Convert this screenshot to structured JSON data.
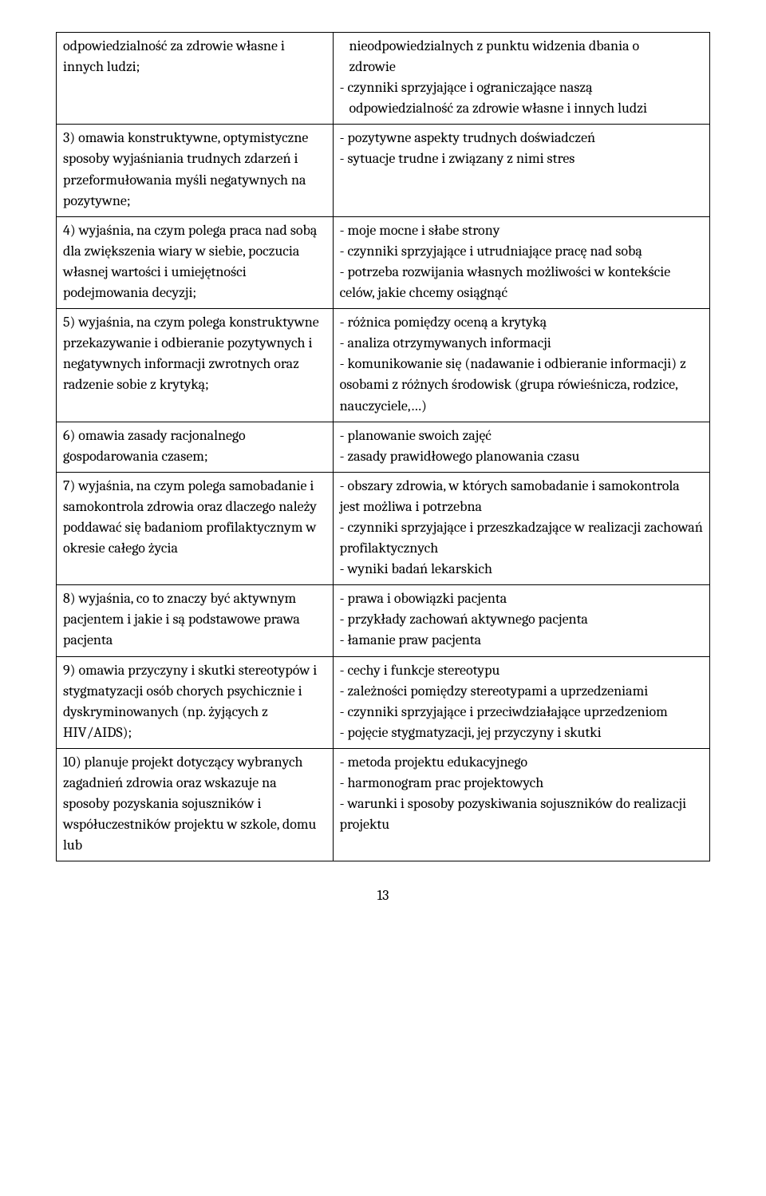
{
  "rows": [
    {
      "left": "odpowiedzialność za zdrowie własne i innych ludzi;",
      "right_first": "   nieodpowiedzialnych z punktu widzenia dbania o",
      "right_indent": "   zdrowie",
      "right_rest": "- czynniki sprzyjające i ograniczające naszą<br>&nbsp;&nbsp;&nbsp;odpowiedzialność za zdrowie własne i innych ludzi"
    },
    {
      "left": "3) omawia konstruktywne, optymistyczne sposoby wyjaśniania trudnych zdarzeń i przeformułowania myśli negatywnych na pozytywne;",
      "right": "- pozytywne aspekty trudnych doświadczeń<br>- sytuacje trudne  i związany z nimi stres"
    },
    {
      "left": "4) wyjaśnia, na czym polega praca nad sobą dla zwiększenia wiary w siebie, poczucia własnej wartości i umiejętności podejmowania decyzji;",
      "right": "- moje mocne i słabe strony<br>- czynniki sprzyjające i utrudniające pracę nad sobą<br>- potrzeba rozwijania własnych możliwości w kontekście celów, jakie chcemy osiągnąć"
    },
    {
      "left": "5) wyjaśnia, na czym polega konstruktywne przekazywanie i odbieranie pozytywnych i negatywnych informacji zwrotnych oraz radzenie sobie z krytyką;",
      "right": "- różnica pomiędzy oceną a krytyką<br>- analiza otrzymywanych informacji<br>- komunikowanie się (nadawanie i odbieranie informacji) z osobami z różnych środowisk (grupa rówieśnicza, rodzice, nauczyciele,…)"
    },
    {
      "left": "6) omawia zasady racjonalnego gospodarowania czasem;",
      "right": "- planowanie swoich zajęć<br>- zasady prawidłowego planowania czasu"
    },
    {
      "left": "7) wyjaśnia, na czym polega samobadanie i samokontrola zdrowia oraz dlaczego należy poddawać się badaniom profilaktycznym w okresie całego życia",
      "right": "- obszary zdrowia, w których samobadanie i samokontrola jest możliwa i potrzebna<br>- czynniki sprzyjające i przeszkadzające w realizacji zachowań profilaktycznych<br>- wyniki badań lekarskich"
    },
    {
      "left": "8) wyjaśnia, co to znaczy być aktywnym pacjentem i jakie i są podstawowe prawa pacjenta",
      "right": "- prawa i obowiązki pacjenta<br>- przykłady zachowań aktywnego pacjenta<br>- łamanie praw pacjenta"
    },
    {
      "left": "9) omawia przyczyny i skutki stereotypów i stygmatyzacji osób chorych psychicznie i dyskryminowanych (np. żyjących z HIV/AIDS);",
      "right": "- cechy i funkcje stereotypu<br>- zależności pomiędzy stereotypami a uprzedzeniami<br>- czynniki sprzyjające i przeciwdziałające uprzedzeniom<br>-  pojęcie stygmatyzacji, jej przyczyny i skutki"
    },
    {
      "left": "10) planuje projekt dotyczący wybranych zagadnień zdrowia oraz wskazuje na sposoby pozyskania sojuszników i współuczestników projektu w szkole, domu lub",
      "right": "- metoda projektu edukacyjnego<br>- harmonogram prac projektowych<br>- warunki i sposoby pozyskiwania sojuszników do realizacji projektu"
    }
  ],
  "page_number": "13"
}
